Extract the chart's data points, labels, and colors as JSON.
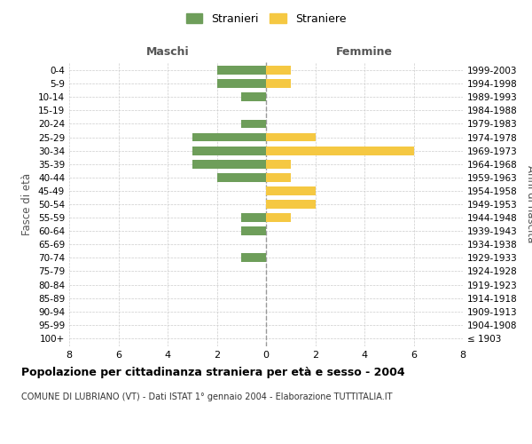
{
  "age_groups": [
    "100+",
    "95-99",
    "90-94",
    "85-89",
    "80-84",
    "75-79",
    "70-74",
    "65-69",
    "60-64",
    "55-59",
    "50-54",
    "45-49",
    "40-44",
    "35-39",
    "30-34",
    "25-29",
    "20-24",
    "15-19",
    "10-14",
    "5-9",
    "0-4"
  ],
  "birth_years": [
    "≤ 1903",
    "1904-1908",
    "1909-1913",
    "1914-1918",
    "1919-1923",
    "1924-1928",
    "1929-1933",
    "1934-1938",
    "1939-1943",
    "1944-1948",
    "1949-1953",
    "1954-1958",
    "1959-1963",
    "1964-1968",
    "1969-1973",
    "1974-1978",
    "1979-1983",
    "1984-1988",
    "1989-1993",
    "1994-1998",
    "1999-2003"
  ],
  "maschi": [
    0,
    0,
    0,
    0,
    0,
    0,
    1,
    0,
    1,
    1,
    0,
    0,
    2,
    3,
    3,
    3,
    1,
    0,
    1,
    2,
    2
  ],
  "femmine": [
    0,
    0,
    0,
    0,
    0,
    0,
    0,
    0,
    0,
    1,
    2,
    2,
    1,
    1,
    6,
    2,
    0,
    0,
    0,
    1,
    1
  ],
  "maschi_color": "#6E9E5A",
  "femmine_color": "#F5C842",
  "background_color": "#FFFFFF",
  "grid_color": "#CCCCCC",
  "title": "Popolazione per cittadinanza straniera per età e sesso - 2004",
  "subtitle": "COMUNE DI LUBRIANO (VT) - Dati ISTAT 1° gennaio 2004 - Elaborazione TUTTITALIA.IT",
  "xlabel_left": "Maschi",
  "xlabel_right": "Femmine",
  "ylabel_left": "Fasce di età",
  "ylabel_right": "Anni di nascita",
  "legend_stranieri": "Stranieri",
  "legend_straniere": "Straniere",
  "xlim": 8,
  "bar_height": 0.65
}
